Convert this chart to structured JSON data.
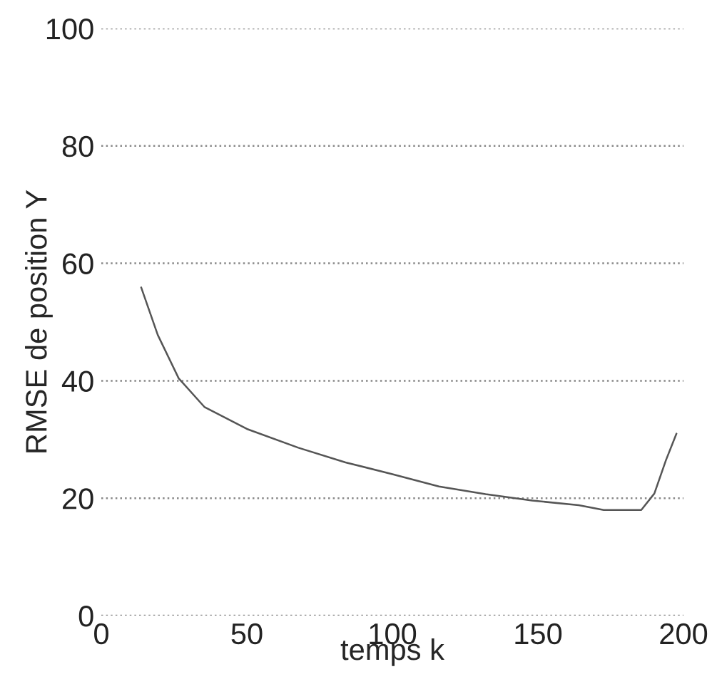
{
  "chart_data": {
    "type": "line",
    "xlabel": "temps k",
    "ylabel": "RMSE de position Y",
    "xlim": [
      0,
      200
    ],
    "ylim": [
      0,
      100
    ],
    "xticks": [
      0,
      50,
      100,
      150,
      200
    ],
    "yticks": [
      0,
      20,
      40,
      60,
      80,
      100
    ],
    "grid": "y",
    "series": [
      {
        "color": "#555555",
        "x": [
          13.7,
          19.4,
          26.6,
          35.5,
          50,
          67.7,
          83.9,
          100,
          116,
          132,
          148,
          164,
          172.6,
          185.5,
          190,
          194,
          197.6
        ],
        "values": [
          55.9,
          47.8,
          40.4,
          35.5,
          31.8,
          28.6,
          26.1,
          24.1,
          22.0,
          20.7,
          19.6,
          18.8,
          18.0,
          18.0,
          20.8,
          26.5,
          31.0
        ]
      }
    ]
  }
}
